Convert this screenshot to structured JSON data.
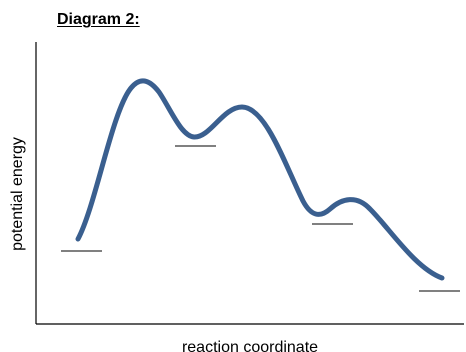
{
  "title": "Diagram 2:",
  "xlabel": "reaction coordinate",
  "ylabel": "potential energy",
  "colors": {
    "curve": "#3A5F8F",
    "axes": "#000000",
    "levels": "#000000"
  },
  "elements": {
    "energy_levels": [
      "reactant",
      "intermediate-1",
      "intermediate-2",
      "product"
    ],
    "maxima": [
      "transition-state-1",
      "transition-state-2",
      "transition-state-3"
    ]
  }
}
